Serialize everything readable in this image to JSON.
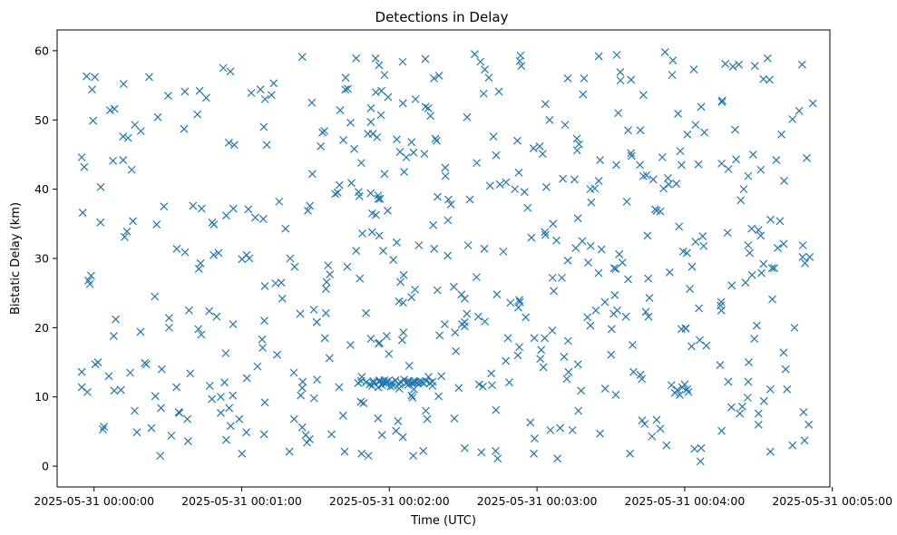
{
  "chart_data": {
    "type": "scatter",
    "title": "Detections in Delay",
    "xlabel": "Time (UTC)",
    "ylabel": "Bistatic Delay (km)",
    "x_ticks": [
      "2025-05-31 00:00:00",
      "2025-05-31 00:01:00",
      "2025-05-31 00:02:00",
      "2025-05-31 00:03:00",
      "2025-05-31 00:04:00",
      "2025-05-31 00:05:00"
    ],
    "y_ticks": [
      "0",
      "10",
      "20",
      "30",
      "40",
      "50",
      "60"
    ],
    "xlim": [
      "2025-05-30 23:59:45",
      "2025-05-31 00:04:59"
    ],
    "ylim": [
      -3,
      63
    ],
    "grid": false,
    "marker": "x",
    "color": "#1f77b4",
    "x_offsets_s": [
      -5.0,
      -4.0,
      -1.2,
      -2.7,
      0.3,
      7.7,
      -5.0,
      -2.3,
      -1.7,
      2.7,
      8.2,
      20.6,
      -3.0,
      0.5,
      4.0,
      6.5,
      6.0,
      14.7,
      11.8,
      19.0,
      -0.4,
      11.8,
      13.8,
      30.1,
      15.3,
      -0.8,
      24.7,
      37.0,
      8.8,
      42.0,
      43.7,
      43.3,
      65.5,
      68.8,
      76.5,
      81.5,
      94.2,
      54.8,
      107.8,
      92.1,
      104.6,
      113.0,
      114.5,
      139.2,
      158.8,
      138.1,
      103.1,
      163.4,
      183.8,
      173.0,
      178.6,
      200.8,
      221.8,
      230.1,
      245.6,
      234.9,
      262.8,
      260.5,
      267.4,
      279.3,
      277.8,
      270.9,
      240.5,
      212.6,
      233.9,
      192.5,
      212.0,
      195.7,
      280.2,
      278.7,
      265.8,
      269.3,
      254.9,
      259.1,
      238.7,
      225.7,
      219.2,
      203.9,
      207.6,
      192.8,
      175.4,
      158.8,
      150.6,
      139.5,
      129.0,
      125.7,
      119.8,
      93.8,
      112.5,
      117.0,
      108.8,
      95.7,
      89.4,
      84.8,
      51.5,
      47.9,
      33.5,
      39.1,
      37.9,
      17.4,
      31.4,
      38.2,
      61.9,
      87.6,
      101.8,
      133.8,
      150.6,
      188.3,
      217.8,
      232.6,
      246.4,
      274.8,
      290.4,
      288.3,
      281.6,
      270.0,
      259.0,
      241.5,
      222.7,
      197.9,
      163.3,
      156.5,
      129.0,
      123.5,
      108.4,
      96.5,
      79.4,
      69.1,
      59.0,
      55.5,
      34.7,
      27.2,
      24.9,
      10.9,
      3.6,
      -5.0,
      1.6,
      8.0,
      21.2,
      30.5,
      47.0,
      68.5,
      90.5,
      104.2,
      125.2,
      146.7,
      168.2,
      181.7,
      201.7,
      224.2,
      245.8,
      264.7,
      275.5,
      290.8,
      288.0,
      272.0,
      257.4,
      239.4,
      214.7,
      190.1,
      172.8,
      146.2,
      125.8,
      108.0,
      95.1,
      69.4,
      50.6,
      33.6,
      12.4,
      2.6,
      -4.6,
      15.8,
      28.4,
      56.6,
      86.9,
      116.2,
      144.0,
      174.9,
      205.1,
      223.2,
      236.6,
      255.0,
      280.4,
      289.6,
      270.9,
      233.2,
      212.2,
      197.1,
      162.3,
      136.7,
      116.6,
      92.8,
      70.2,
      36.6,
      16.6,
      8.3,
      25.9,
      45.6,
      72.1,
      100.0,
      125.5,
      158.3,
      192.5,
      213.9,
      243.7,
      268.5,
      287.7,
      273.7,
      232.0,
      205.1,
      173.3,
      154.7,
      114.4,
      84.6,
      55.4,
      22.4,
      12.0,
      42.9,
      67.6,
      88.5,
      134.7,
      151.6,
      185.1,
      217.0,
      241.1,
      267.8,
      277.2,
      257.8,
      224.5,
      190.5,
      167.4,
      139.6,
      115.5,
      98.0,
      75.2,
      53.7,
      25.4,
      13.4,
      48.7,
      77.8,
      106.5,
      138.2,
      166.3,
      198.4,
      240.9,
      288.9,
      276.4,
      242.1,
      211.6,
      186.3,
      150.6,
      125.6,
      89.3,
      69.2,
      30.5,
      18.9,
      43.6,
      68.3,
      115.6,
      147.0,
      181.3,
      218.8,
      254.4,
      281.0,
      265.8,
      222.0,
      192.1,
      161.7,
      113.0,
      84.0,
      54.9,
      16.5,
      34.4,
      69.4,
      101.2,
      146.4,
      189.4,
      230.1,
      270.0,
      283.8,
      246.7,
      205.6,
      163.2,
      129.7,
      86.5,
      53.7,
      26.9,
      60.1,
      108.7,
      157.4,
      194.4,
      226.7,
      265.6,
      263.4,
      228.6,
      177.3,
      135.4,
      99.6,
      66.4,
      27.5,
      90.6,
      135.9,
      196.6,
      242.8,
      280.2,
      248.8,
      192.6,
      142.5,
      90.5,
      49.8,
      123.9,
      186.8,
      254.8,
      217.0,
      155.4,
      102.9,
      48.6,
      117.5,
      201.8,
      270.0,
      247.3,
      183.4,
      119.3,
      62.7,
      87.7,
      171.0,
      231.4,
      264.0,
      172.6,
      108.6,
      155.5,
      196.3,
      129.8,
      172.0,
      248.0,
      93.6,
      112.5,
      213.0,
      255.3,
      69.5,
      164.5,
      213.8,
      140.2,
      52.5,
      212.4,
      235.2,
      125.4,
      76.1,
      151.5,
      266.4,
      207.7,
      109.5,
      183.1,
      145.0,
      230.9,
      168.7,
      94.2,
      202.0,
      137.8,
      243.0,
      86.0,
      160.4,
      195.2,
      222.0,
      115.4,
      62.0,
      198.7,
      254.6,
      172.2,
      138.7,
      210.3,
      262.4,
      186.5,
      95.8,
      160.9,
      228.6,
      53.5,
      247.7,
      134.6,
      107.3,
      218.2,
      275.6,
      191.4,
      125.5,
      237.7,
      178.7,
      259.6,
      156.1,
      246.7,
      83.8,
      211.3,
      142.8,
      272.2,
      115.8,
      185.4,
      240.3,
      152.7,
      260.9,
      223.2,
      121.6,
      74.4,
      196.2,
      143.8,
      102.2,
      163.7,
      244.0,
      183.2,
      227.2,
      62.1,
      135.8,
      212.0,
      256.5,
      169.2,
      124.3,
      216.1,
      164.0,
      140.4,
      84.6,
      73.0,
      152.0,
      69.0,
      57.0,
      99.0,
      105.7,
      115.9,
      122.7,
      150.6,
      196.6,
      206.2,
      213.4,
      222.6,
      233.5,
      36.9,
      40.2,
      42.6,
      48.0,
      56.4,
      81.2,
      129.0,
      134.2,
      143.7,
      172.4,
      183.4,
      187.9,
      196.8,
      201.7,
      205.6,
      216.5,
      237.3,
      262.0,
      274.5,
      283.8,
      42.4,
      119.5,
      149.3,
      172.8,
      182.6,
      200.5,
      225.2,
      244.4,
      266.0,
      288.7,
      46.8,
      53.0,
      88.7,
      104.2,
      111.3,
      130.6,
      178.9,
      186.2,
      238.2,
      274.9,
      38.6,
      60.1,
      84.6,
      102.1,
      134.8,
      161.4,
      181.1,
      203.5,
      225.3,
      267.2,
      292.1,
      51.5,
      63.1,
      113.3,
      118.9,
      126.9,
      176.2,
      205.0,
      265.8,
      286.5,
      23.3,
      56.5,
      73.7,
      118.0,
      164.9,
      199.1,
      228.0,
      255.0,
      284.6,
      63.9,
      123.0,
      141.1,
      167.3,
      177.7,
      244.4,
      268.3,
      81.3,
      94.5,
      132.0,
      173.0,
      218.4,
      257.7,
      79.7,
      112.4,
      128.1,
      179.0,
      238.7,
      113.0,
      218.2,
      148.2,
      191.0,
      287.9,
      99.7,
      255.1,
      149.5,
      224.9,
      130.4,
      182.3,
      274.8,
      158.6,
      101.3,
      116.8,
      157.0,
      210.1,
      271.2,
      129.4,
      173.6,
      234.6,
      272.0,
      142.7,
      211.1,
      223.7,
      246.1,
      115.0,
      106.5,
      107.5,
      109.0,
      110.5,
      111.5,
      112.5,
      113.5,
      114.5,
      115.5,
      116.0,
      117.0,
      118.0,
      123.0,
      124.5,
      126.0,
      127.5,
      129.0,
      130.5,
      132.0,
      133.5,
      135.0,
      136.5,
      137.5,
      110.5,
      108.5,
      113.5,
      116.0,
      118.0,
      119.5,
      121.0,
      122.5,
      124.5,
      126.0,
      128.0,
      129.5,
      131.5,
      133.0,
      112.0,
      115.5,
      118.5,
      121.5,
      124.0,
      127.5,
      130.5,
      134.0,
      117.5,
      120.5,
      124.0,
      127.0,
      130.0,
      137.5,
      116.0,
      119.0,
      130.0,
      236.0,
      237.0,
      238.0,
      239.0,
      240.0,
      241.0,
      158.0,
      140.0
    ],
    "y_values": [
      44.6,
      43.2,
      27.5,
      10.7,
      56.2,
      44.1,
      11.4,
      26.8,
      26.3,
      40.3,
      10.9,
      14.9,
      56.3,
      14.7,
      5.7,
      51.4,
      13.0,
      13.5,
      44.2,
      48.4,
      49.9,
      47.6,
      47.4,
      53.5,
      42.8,
      54.4,
      24.5,
      30.9,
      21.2,
      50.8,
      37.2,
      29.3,
      35.9,
      35.7,
      24.2,
      28.8,
      22.1,
      46.7,
      39.0,
      46.2,
      40.9,
      33.8,
      36.3,
      47.0,
      57.3,
      56.0,
      54.5,
      44.9,
      40.3,
      58.5,
      45.9,
      29.4,
      43.5,
      36.8,
      43.6,
      56.5,
      38.4,
      48.6,
      27.6,
      47.9,
      31.5,
      33.3,
      19.9,
      22.5,
      28.0,
      29.7,
      28.5,
      31.5,
      32.1,
      35.4,
      31.9,
      20.3,
      22.5,
      26.1,
      19.8,
      24.3,
      13.6,
      22.5,
      23.7,
      13.6,
      21.5,
      20.9,
      20.8,
      25.4,
      24.4,
      19.3,
      16.2,
      18.5,
      18.4,
      11.7,
      12.9,
      15.6,
      9.8,
      12.2,
      10.0,
      9.7,
      11.4,
      13.4,
      6.8,
      4.9,
      4.4,
      3.6,
      4.9,
      3.9,
      2.1,
      2.2,
      2.6,
      1.1,
      1.8,
      3.0,
      0.7,
      2.1,
      6.0,
      7.8,
      11.1,
      7.6,
      8.5,
      10.7,
      6.6,
      10.9,
      8.1,
      11.8,
      10.2,
      6.5,
      9.3,
      4.6,
      2.1,
      4.6,
      6.8,
      5.8,
      7.7,
      8.4,
      10.1,
      11.0,
      5.3,
      13.6,
      15.0,
      18.8,
      14.7,
      20.0,
      11.6,
      17.1,
      20.8,
      17.5,
      18.2,
      19.3,
      18.5,
      16.8,
      20.3,
      22.3,
      22.8,
      26.5,
      28.6,
      30.2,
      31.9,
      29.2,
      33.7,
      31.0,
      29.4,
      27.2,
      24.0,
      25.9,
      27.6,
      27.1,
      29.0,
      26.0,
      30.8,
      31.4,
      33.1,
      35.2,
      36.6,
      35.4,
      37.5,
      37.2,
      36.9,
      38.6,
      38.5,
      39.6,
      41.2,
      41.9,
      40.8,
      43.7,
      41.2,
      44.5,
      42.8,
      41.6,
      43.5,
      46.5,
      47.6,
      50.6,
      50.7,
      48.2,
      46.4,
      48.7,
      49.3,
      51.6,
      50.4,
      53.2,
      53.6,
      51.4,
      52.4,
      53.8,
      56.0,
      55.7,
      57.3,
      57.8,
      58.0,
      58.9,
      59.8,
      59.2,
      59.3,
      59.5,
      58.9,
      59.1,
      57.0,
      56.2,
      55.2,
      54.2,
      54.4,
      52.5,
      51.9,
      50.4,
      50.0,
      48.5,
      47.9,
      45.0,
      44.2,
      42.9,
      42.0,
      41.5,
      41.0,
      38.9,
      39.1,
      39.3,
      38.2,
      36.2,
      34.9,
      33.9,
      34.9,
      34.3,
      31.1,
      31.4,
      31.0,
      32.5,
      30.8,
      29.3,
      28.6,
      25.6,
      24.7,
      27.2,
      24.2,
      23.6,
      22.6,
      21.0,
      21.4,
      19.4,
      19.0,
      18.3,
      17.7,
      16.6,
      15.5,
      17.5,
      14.6,
      14.0,
      12.2,
      13.2,
      12.6,
      11.7,
      11.6,
      10.2,
      8.4,
      8.0,
      7.8,
      9.2,
      7.3,
      6.9,
      5.5,
      5.4,
      6.0,
      3.0,
      2.6,
      4.7,
      2.2,
      1.5,
      3.4,
      3.8,
      1.5,
      1.8,
      1.8,
      2.0,
      5.2,
      4.3,
      9.9,
      8.6,
      6.7,
      6.3,
      6.8,
      11.4,
      14.4,
      14.0,
      12.5,
      12.9,
      14.7,
      17.3,
      16.4,
      17.4,
      18.1,
      20.5,
      20.8,
      21.6,
      23.8,
      25.3,
      23.7,
      27.0,
      27.3,
      28.8,
      30.5,
      31.1,
      31.8,
      34.1,
      33.2,
      33.4,
      36.9,
      37.1,
      37.6,
      40.0,
      40.1,
      40.0,
      42.4,
      43.8,
      43.8,
      45.6,
      45.3,
      47.0,
      48.2,
      48.4,
      49.7,
      51.0,
      52.8,
      53.0,
      54.1,
      56.9,
      56.4,
      57.5,
      59.4,
      58.6,
      58.4,
      26.5,
      22.0,
      30.8,
      11.2,
      9.1,
      18.5,
      37.8,
      44.6,
      12.1,
      25.6,
      38.1,
      34.8,
      28.8,
      4.5,
      56.1,
      41.4,
      48.5,
      6.9,
      30.5,
      53.7,
      23.2,
      16.0,
      47.3,
      19.8,
      7.6,
      35.0,
      27.7,
      40.5,
      36.9,
      16.3,
      31.8,
      58.8,
      12.0,
      45.2,
      24.1,
      49.3,
      4.2,
      34.6,
      1.8,
      57.7,
      21.6,
      51.9,
      22.0,
      28.6,
      41.9,
      9.4,
      57.9,
      5.2,
      19.9,
      38.5,
      44.3,
      53.6,
      29.8,
      16.1,
      47.3,
      35.5,
      56.1,
      24.8,
      2.5,
      33.8,
      41.4,
      12.7,
      51.7,
      10.3,
      58.1,
      23.6,
      45.4,
      21.6,
      1.1,
      18.9,
      5.6,
      55.3,
      31.9,
      49.0,
      46.4,
      39.5,
      45.8,
      33.3,
      5.1,
      20.2,
      35.8,
      31.3,
      30.6,
      12.6,
      40.7,
      54.1,
      37.6,
      28.5,
      35.2,
      10.2,
      13.5,
      46.8,
      45.1,
      30.4,
      22.9,
      52.3,
      32.6,
      8.0,
      40.0,
      44.2,
      38.2,
      50.9,
      58.0,
      55.8,
      50.1,
      19.8,
      53.3,
      24.8,
      17.2,
      14.3,
      21.5,
      27.1,
      32.4,
      15.0,
      3.7,
      22.4,
      12.1,
      42.2,
      49.6,
      48.0,
      53.0,
      18.5,
      19.6,
      45.5,
      35.6,
      22.5,
      29.9,
      11.3,
      54.4,
      8.0,
      13.4,
      46.2,
      40.1,
      21.6,
      34.3,
      52.4,
      7.7,
      30.0,
      48.0,
      18.8,
      44.6,
      37.3,
      27.9,
      41.9,
      51.3,
      5.5,
      20.5,
      26.4,
      42.2,
      40.7,
      56.0,
      37.1,
      5.1,
      20.0,
      53.9,
      32.3,
      13.0,
      15.2,
      33.0,
      49.3,
      18.4,
      6.8,
      26.6,
      31.9,
      23.7,
      44.8,
      12.2,
      30.0,
      39.4,
      14.5,
      4.0,
      43.5,
      36.5,
      55.8,
      11.3,
      15.8,
      30.2,
      40.6,
      52.6,
      20.5,
      33.3,
      25.5,
      45.1,
      11.1,
      31.4,
      47.1,
      54.2,
      58.4,
      16.1,
      27.9,
      9.9,
      57.8,
      11.7,
      55.9,
      43.1,
      22.0,
      6.1,
      18.2,
      47.5,
      58.9,
      39.6,
      33.6,
      22.1,
      1.5,
      51.7,
      12.3,
      54.0,
      38.6,
      17.8,
      4.5,
      56.5,
      47.2,
      26.6,
      42.5,
      12.2,
      12.0,
      12.1,
      12.2,
      12.1,
      12.3,
      12.0,
      12.2,
      12.1,
      12.3,
      12.0,
      12.2,
      12.4,
      12.3,
      12.1,
      12.4,
      12.2,
      12.5,
      12.3,
      12.1,
      12.0,
      12.2,
      11.8,
      11.4,
      11.9,
      11.6,
      11.2,
      11.7,
      12.2,
      11.9,
      12.1,
      11.5,
      11.8,
      12.0,
      12.3,
      11.6,
      12.4,
      12.2,
      11.1,
      10.6,
      11.0,
      10.3,
      11.4,
      11.8,
      11.1,
      11.5,
      10.1,
      10.9,
      12.6,
      12.6,
      12.5,
      11.2,
      9.8,
      12.7,
      12.4,
      12.4,
      5.8,
      5.8,
      5.8,
      5.8,
      5.8,
      5.9,
      8.7,
      8.9
    ]
  }
}
